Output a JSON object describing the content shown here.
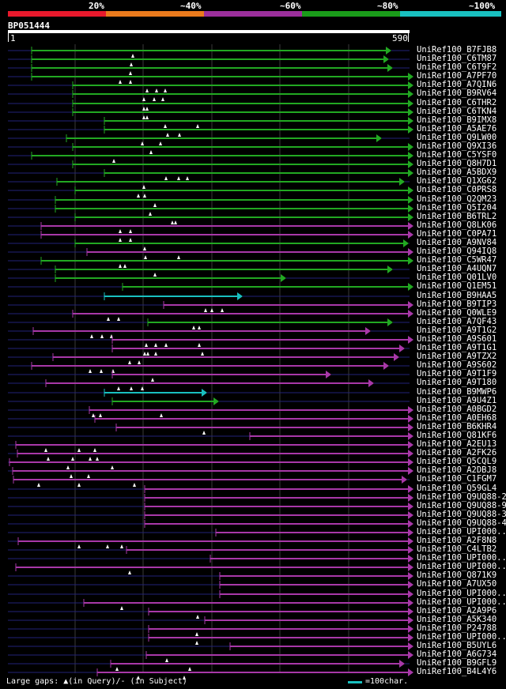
{
  "legend": {
    "ticks": [
      "20%",
      "~40%",
      "~60%",
      "~80%",
      "~100%"
    ],
    "colors": [
      "#e8192c",
      "#ea7a1c",
      "#9c2f9c",
      "#1a9c1a",
      "#19c0c0"
    ]
  },
  "query": {
    "id": "BP051444",
    "start": "1",
    "end": "590"
  },
  "colors": {
    "green": "#22a822",
    "purple": "#a838a8",
    "cyan": "#19c0c0",
    "gap": "#222277",
    "grid": "#3a3a3a",
    "triangle": "#ffffff"
  },
  "hits": [
    {
      "name": "UniRef100_B7FJB8",
      "color": "green",
      "start": 40,
      "end": 488,
      "pre": true,
      "tri": [
        168
      ]
    },
    {
      "name": "UniRef100_C6TM87",
      "color": "green",
      "start": 40,
      "end": 485,
      "pre": true,
      "tri": [
        166
      ]
    },
    {
      "name": "UniRef100_C6T9F2",
      "color": "green",
      "start": 40,
      "end": 490,
      "pre": true,
      "tri": [
        165
      ]
    },
    {
      "name": "UniRef100_A7PF70",
      "color": "green",
      "start": 40,
      "end": 516,
      "pre": true,
      "tri": [
        152,
        165
      ]
    },
    {
      "name": "UniRef100_A7QIN6",
      "color": "green",
      "start": 92,
      "end": 516,
      "pre": true,
      "tri": [
        186,
        198,
        209
      ]
    },
    {
      "name": "UniRef100_B9RV64",
      "color": "green",
      "start": 92,
      "end": 516,
      "pre": true,
      "tri": [
        182,
        195,
        206
      ]
    },
    {
      "name": "UniRef100_C6THR2",
      "color": "green",
      "start": 92,
      "end": 516,
      "pre": true,
      "tri": [
        182,
        186
      ]
    },
    {
      "name": "UniRef100_C6TKN4",
      "color": "green",
      "start": 92,
      "end": 516,
      "pre": true,
      "tri": [
        182,
        186
      ]
    },
    {
      "name": "UniRef100_B9IMX8",
      "color": "green",
      "start": 132,
      "end": 516,
      "pre": true,
      "tri": [
        209,
        250
      ]
    },
    {
      "name": "UniRef100_A5AE76",
      "color": "green",
      "start": 132,
      "end": 516,
      "pre": true,
      "tri": [
        212,
        227
      ]
    },
    {
      "name": "UniRef100_Q9LW00",
      "color": "green",
      "start": 84,
      "end": 476,
      "pre": true,
      "tri": [
        180,
        203
      ]
    },
    {
      "name": "UniRef100_Q9XI36",
      "color": "green",
      "start": 92,
      "end": 516,
      "pre": true,
      "tri": [
        191
      ]
    },
    {
      "name": "UniRef100_C5YSF0",
      "color": "green",
      "start": 40,
      "end": 516,
      "pre": true,
      "tri": [
        144
      ]
    },
    {
      "name": "UniRef100_Q8H7D1",
      "color": "green",
      "start": 92,
      "end": 516,
      "pre": true,
      "tri": []
    },
    {
      "name": "UniRef100_A5BDX9",
      "color": "green",
      "start": 132,
      "end": 516,
      "pre": true,
      "tri": [
        210,
        226,
        237
      ]
    },
    {
      "name": "UniRef100_Q1XG62",
      "color": "green",
      "start": 72,
      "end": 505,
      "pre": true,
      "tri": [
        182
      ]
    },
    {
      "name": "UniRef100_C0PRS8",
      "color": "green",
      "start": 95,
      "end": 516,
      "pre": true,
      "tri": [
        175,
        183
      ]
    },
    {
      "name": "UniRef100_Q2QM23",
      "color": "green",
      "start": 70,
      "end": 516,
      "pre": true,
      "tri": [
        196
      ]
    },
    {
      "name": "UniRef100_Q5I204",
      "color": "green",
      "start": 70,
      "end": 516,
      "pre": true,
      "tri": [
        190
      ]
    },
    {
      "name": "UniRef100_B6TRL2",
      "color": "green",
      "start": 95,
      "end": 516,
      "pre": true,
      "tri": [
        218,
        222
      ]
    },
    {
      "name": "UniRef100_Q8LK06",
      "color": "purple",
      "start": 52,
      "end": 516,
      "pre": true,
      "tri": [
        152,
        165
      ]
    },
    {
      "name": "UniRef100_C0PA71",
      "color": "purple",
      "start": 52,
      "end": 516,
      "pre": true,
      "tri": [
        152,
        165
      ]
    },
    {
      "name": "UniRef100_A9NV84",
      "color": "green",
      "start": 95,
      "end": 510,
      "pre": true,
      "tri": [
        183
      ]
    },
    {
      "name": "UniRef100_Q94IQ8",
      "color": "purple",
      "start": 110,
      "end": 516,
      "pre": true,
      "tri": [
        184,
        226
      ]
    },
    {
      "name": "UniRef100_C5WR47",
      "color": "green",
      "start": 52,
      "end": 516,
      "pre": true,
      "tri": [
        152,
        158
      ]
    },
    {
      "name": "UniRef100_A4UQN7",
      "color": "green",
      "start": 70,
      "end": 490,
      "pre": true,
      "tri": [
        196
      ]
    },
    {
      "name": "UniRef100_Q01LV0",
      "color": "green",
      "start": 70,
      "end": 355,
      "pre": true,
      "tri": []
    },
    {
      "name": "UniRef100_Q1EM51",
      "color": "green",
      "start": 155,
      "end": 516,
      "pre": true,
      "tri": []
    },
    {
      "name": "UniRef100_B9HAA5",
      "color": "cyan",
      "start": 132,
      "end": 300,
      "pre": true,
      "tri": []
    },
    {
      "name": "UniRef100_B9TIP3",
      "color": "purple",
      "start": 207,
      "end": 516,
      "pre": true,
      "tri": [
        260,
        268,
        281
      ]
    },
    {
      "name": "UniRef100_Q0WLE9",
      "color": "purple",
      "start": 92,
      "end": 516,
      "pre": true,
      "tri": [
        137,
        150
      ]
    },
    {
      "name": "UniRef100_A7QF43",
      "color": "green",
      "start": 187,
      "end": 490,
      "pre": true,
      "tri": [
        245,
        252
      ]
    },
    {
      "name": "UniRef100_A9T1G2",
      "color": "purple",
      "start": 42,
      "end": 462,
      "pre": true,
      "tri": [
        116,
        129,
        141
      ]
    },
    {
      "name": "UniRef100_A9S601",
      "color": "purple",
      "start": 142,
      "end": 516,
      "pre": true,
      "tri": [
        185,
        197,
        210,
        252
      ]
    },
    {
      "name": "UniRef100_A9T1G1",
      "color": "purple",
      "start": 142,
      "end": 505,
      "pre": true,
      "tri": [
        183,
        187,
        197,
        256
      ]
    },
    {
      "name": "UniRef100_A9TZX2",
      "color": "purple",
      "start": 67,
      "end": 498,
      "pre": true,
      "tri": [
        164,
        176
      ]
    },
    {
      "name": "UniRef100_A9S602",
      "color": "purple",
      "start": 40,
      "end": 485,
      "pre": true,
      "tri": [
        114,
        128,
        143
      ]
    },
    {
      "name": "UniRef100_A9T1F9",
      "color": "purple",
      "start": 142,
      "end": 412,
      "pre": true,
      "tri": [
        193
      ]
    },
    {
      "name": "UniRef100_A9T180",
      "color": "purple",
      "start": 58,
      "end": 466,
      "pre": true,
      "tri": [
        150,
        166,
        180
      ]
    },
    {
      "name": "UniRef100_B9MWP6",
      "color": "cyan",
      "start": 132,
      "end": 255,
      "pre": true,
      "tri": []
    },
    {
      "name": "UniRef100_A9U4Z1",
      "color": "green",
      "start": 142,
      "end": 270,
      "pre": true,
      "tri": []
    },
    {
      "name": "UniRef100_A0BGD2",
      "color": "purple",
      "start": 113,
      "end": 516,
      "pre": true,
      "tri": [
        118,
        127,
        204
      ]
    },
    {
      "name": "UniRef100_A0EH68",
      "color": "purple",
      "start": 120,
      "end": 516,
      "pre": true,
      "tri": []
    },
    {
      "name": "UniRef100_B6KHR4",
      "color": "purple",
      "start": 147,
      "end": 516,
      "pre": true,
      "tri": [
        258
      ]
    },
    {
      "name": "UniRef100_Q81KF6",
      "color": "purple",
      "start": 316,
      "end": 516,
      "pre": true,
      "tri": []
    },
    {
      "name": "UniRef100_A2EU13",
      "color": "purple",
      "start": 20,
      "end": 516,
      "pre": true,
      "tri": [
        58,
        100,
        120
      ]
    },
    {
      "name": "UniRef100_A2FK26",
      "color": "purple",
      "start": 22,
      "end": 516,
      "pre": true,
      "tri": [
        61,
        92,
        114,
        123
      ]
    },
    {
      "name": "UniRef100_Q5CQL9",
      "color": "purple",
      "start": 12,
      "end": 516,
      "pre": true,
      "tri": [
        86,
        142
      ]
    },
    {
      "name": "UniRef100_A2DBJ8",
      "color": "purple",
      "start": 16,
      "end": 516,
      "pre": true,
      "tri": [
        90,
        112
      ]
    },
    {
      "name": "UniRef100_C1FGM7",
      "color": "purple",
      "start": 17,
      "end": 508,
      "pre": false,
      "tri": [
        49,
        100,
        170
      ]
    },
    {
      "name": "UniRef100_Q59GL4",
      "color": "purple",
      "start": 183,
      "end": 516,
      "pre": true,
      "tri": []
    },
    {
      "name": "UniRef100_Q9UQ88-2",
      "color": "purple",
      "start": 183,
      "end": 516,
      "pre": true,
      "tri": []
    },
    {
      "name": "UniRef100_Q9UQ88-9",
      "color": "purple",
      "start": 183,
      "end": 516,
      "pre": true,
      "tri": []
    },
    {
      "name": "UniRef100_Q9UQ88-3",
      "color": "purple",
      "start": 183,
      "end": 516,
      "pre": true,
      "tri": []
    },
    {
      "name": "UniRef100_Q9UQ88-4",
      "color": "purple",
      "start": 183,
      "end": 516,
      "pre": true,
      "tri": []
    },
    {
      "name": "UniRef100_UPI000..",
      "color": "purple",
      "start": 273,
      "end": 516,
      "pre": true,
      "tri": []
    },
    {
      "name": "UniRef100_A2F8N8",
      "color": "purple",
      "start": 23,
      "end": 516,
      "pre": true,
      "tri": [
        100,
        136,
        154
      ]
    },
    {
      "name": "UniRef100_C4LTB2",
      "color": "purple",
      "start": 160,
      "end": 516,
      "pre": true,
      "tri": []
    },
    {
      "name": "UniRef100_UPI000..",
      "color": "purple",
      "start": 266,
      "end": 516,
      "pre": true,
      "tri": []
    },
    {
      "name": "UniRef100_UPI000..",
      "color": "purple",
      "start": 20,
      "end": 516,
      "pre": false,
      "tri": [
        164
      ]
    },
    {
      "name": "UniRef100_Q871K9",
      "color": "purple",
      "start": 278,
      "end": 516,
      "pre": true,
      "tri": []
    },
    {
      "name": "UniRef100_A7UX50",
      "color": "purple",
      "start": 278,
      "end": 516,
      "pre": true,
      "tri": []
    },
    {
      "name": "UniRef100_UPI000..",
      "color": "purple",
      "start": 278,
      "end": 516,
      "pre": true,
      "tri": []
    },
    {
      "name": "UniRef100_UPI000..",
      "color": "purple",
      "start": 106,
      "end": 516,
      "pre": true,
      "tri": [
        154
      ]
    },
    {
      "name": "UniRef100_A2A9P6",
      "color": "purple",
      "start": 188,
      "end": 516,
      "pre": true,
      "tri": [
        250
      ]
    },
    {
      "name": "UniRef100_A5K340",
      "color": "purple",
      "start": 259,
      "end": 516,
      "pre": true,
      "tri": []
    },
    {
      "name": "UniRef100_P24788",
      "color": "purple",
      "start": 188,
      "end": 516,
      "pre": true,
      "tri": [
        249
      ]
    },
    {
      "name": "UniRef100_UPI000..",
      "color": "purple",
      "start": 188,
      "end": 516,
      "pre": true,
      "tri": [
        249
      ]
    },
    {
      "name": "UniRef100_B5UYL6",
      "color": "purple",
      "start": 291,
      "end": 516,
      "pre": true,
      "tri": []
    },
    {
      "name": "UniRef100_A6G734",
      "color": "purple",
      "start": 185,
      "end": 516,
      "pre": true,
      "tri": [
        211
      ]
    },
    {
      "name": "UniRef100_B9GFL9",
      "color": "purple",
      "start": 140,
      "end": 505,
      "pre": true,
      "tri": [
        148,
        240
      ]
    },
    {
      "name": "UniRef100_B4L4Y6",
      "color": "purple",
      "start": 123,
      "end": 516,
      "pre": true,
      "tri": [
        175,
        233
      ]
    }
  ],
  "footer": {
    "gaps_label": "Large gaps: ▲(in Query)/- (in Subject)",
    "scale_label": "=100char."
  }
}
